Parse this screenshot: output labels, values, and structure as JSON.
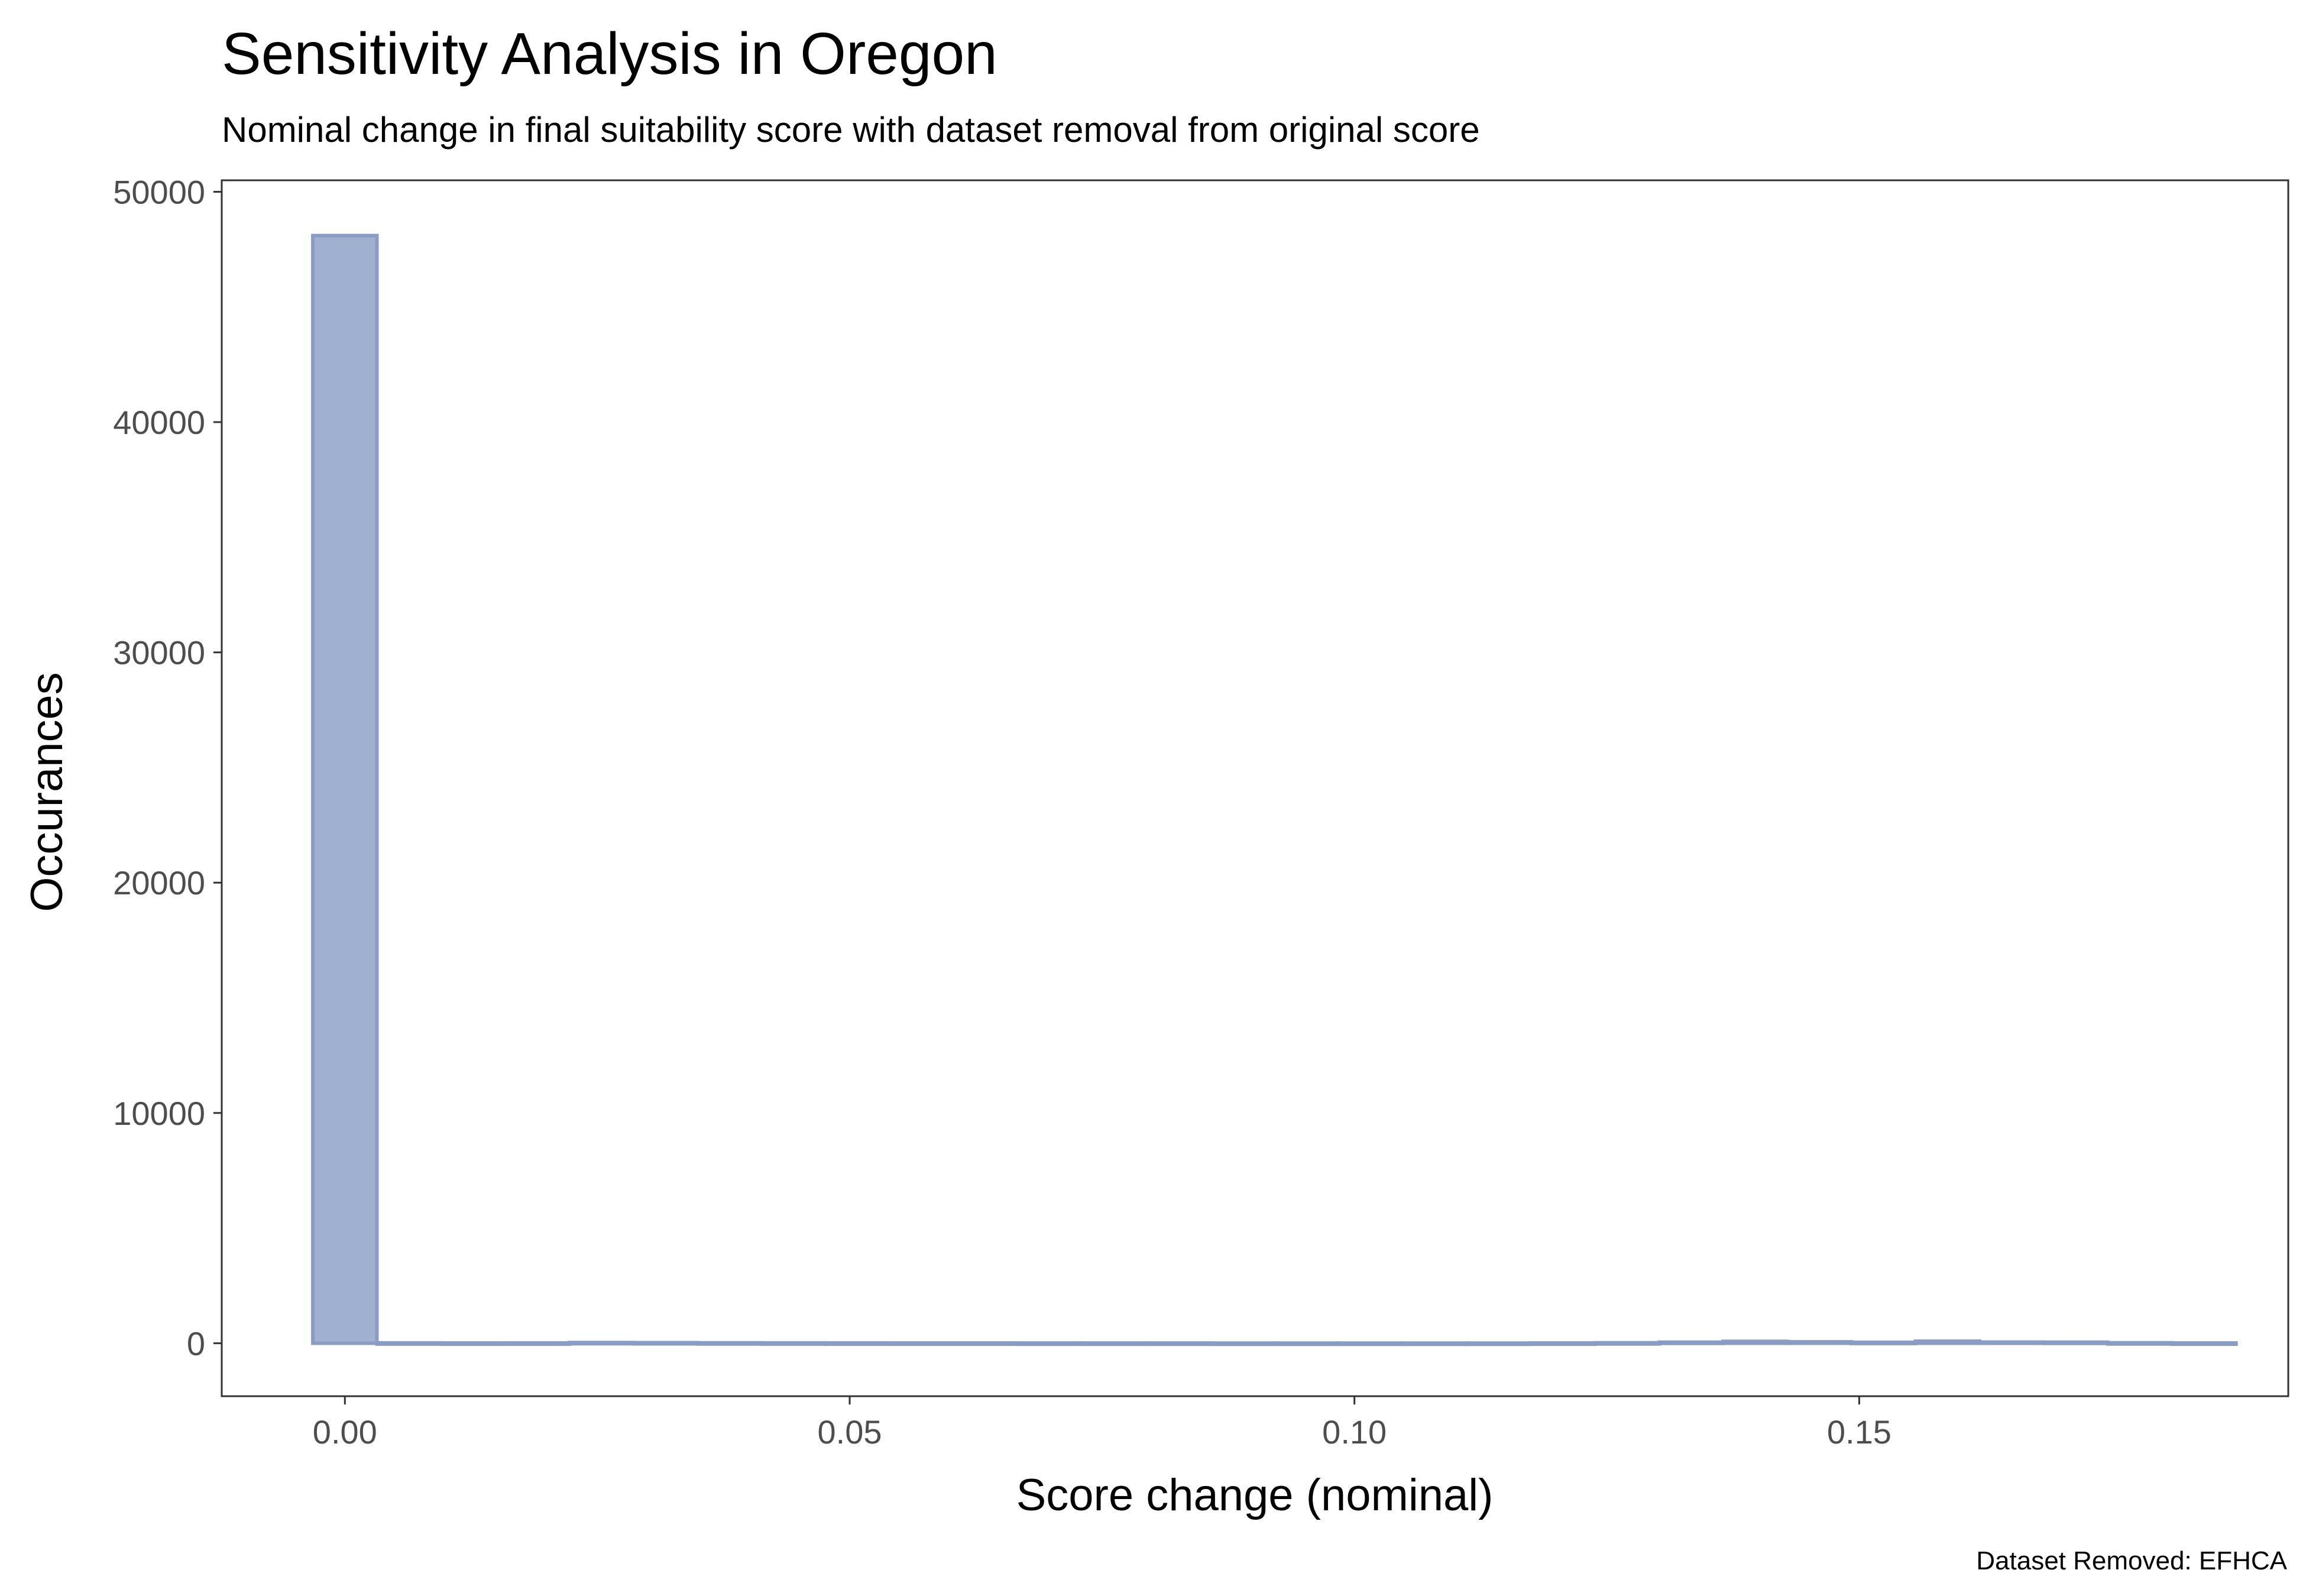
{
  "chart_data": {
    "type": "bar",
    "title": "Sensitivity Analysis in Oregon",
    "subtitle": "Nominal change in final suitability score with dataset removal from original score",
    "caption": "Dataset Removed: EFHCA",
    "xlabel": "Score change (nominal)",
    "ylabel": "Occurances",
    "xlim": [
      -0.0122,
      0.1925
    ],
    "ylim": [
      -2300,
      50500
    ],
    "x_ticks": [
      0.0,
      0.05,
      0.1,
      0.15
    ],
    "x_tick_labels": [
      "0.00",
      "0.05",
      "0.10",
      "0.15"
    ],
    "y_ticks": [
      0,
      10000,
      20000,
      30000,
      40000,
      50000
    ],
    "y_tick_labels": [
      "0",
      "10000",
      "20000",
      "30000",
      "40000",
      "50000"
    ],
    "bin_width": 0.00635,
    "bin_centers": [
      0.0,
      0.00635,
      0.0127,
      0.01905,
      0.0254,
      0.03175,
      0.0381,
      0.04445,
      0.0508,
      0.05715,
      0.0635,
      0.06985,
      0.0762,
      0.08255,
      0.0889,
      0.09525,
      0.1016,
      0.10795,
      0.1143,
      0.12065,
      0.127,
      0.13335,
      0.1397,
      0.14605,
      0.1524,
      0.15875,
      0.1651,
      0.17145,
      0.1778,
      0.18415
    ],
    "values": [
      48100,
      15,
      10,
      12,
      30,
      25,
      18,
      14,
      12,
      10,
      10,
      8,
      8,
      8,
      6,
      6,
      5,
      5,
      5,
      10,
      20,
      45,
      80,
      60,
      40,
      90,
      50,
      45,
      20,
      10
    ],
    "grid": false,
    "bar_fill": "#a0b0d0",
    "bar_stroke": "#8a9cc4"
  }
}
